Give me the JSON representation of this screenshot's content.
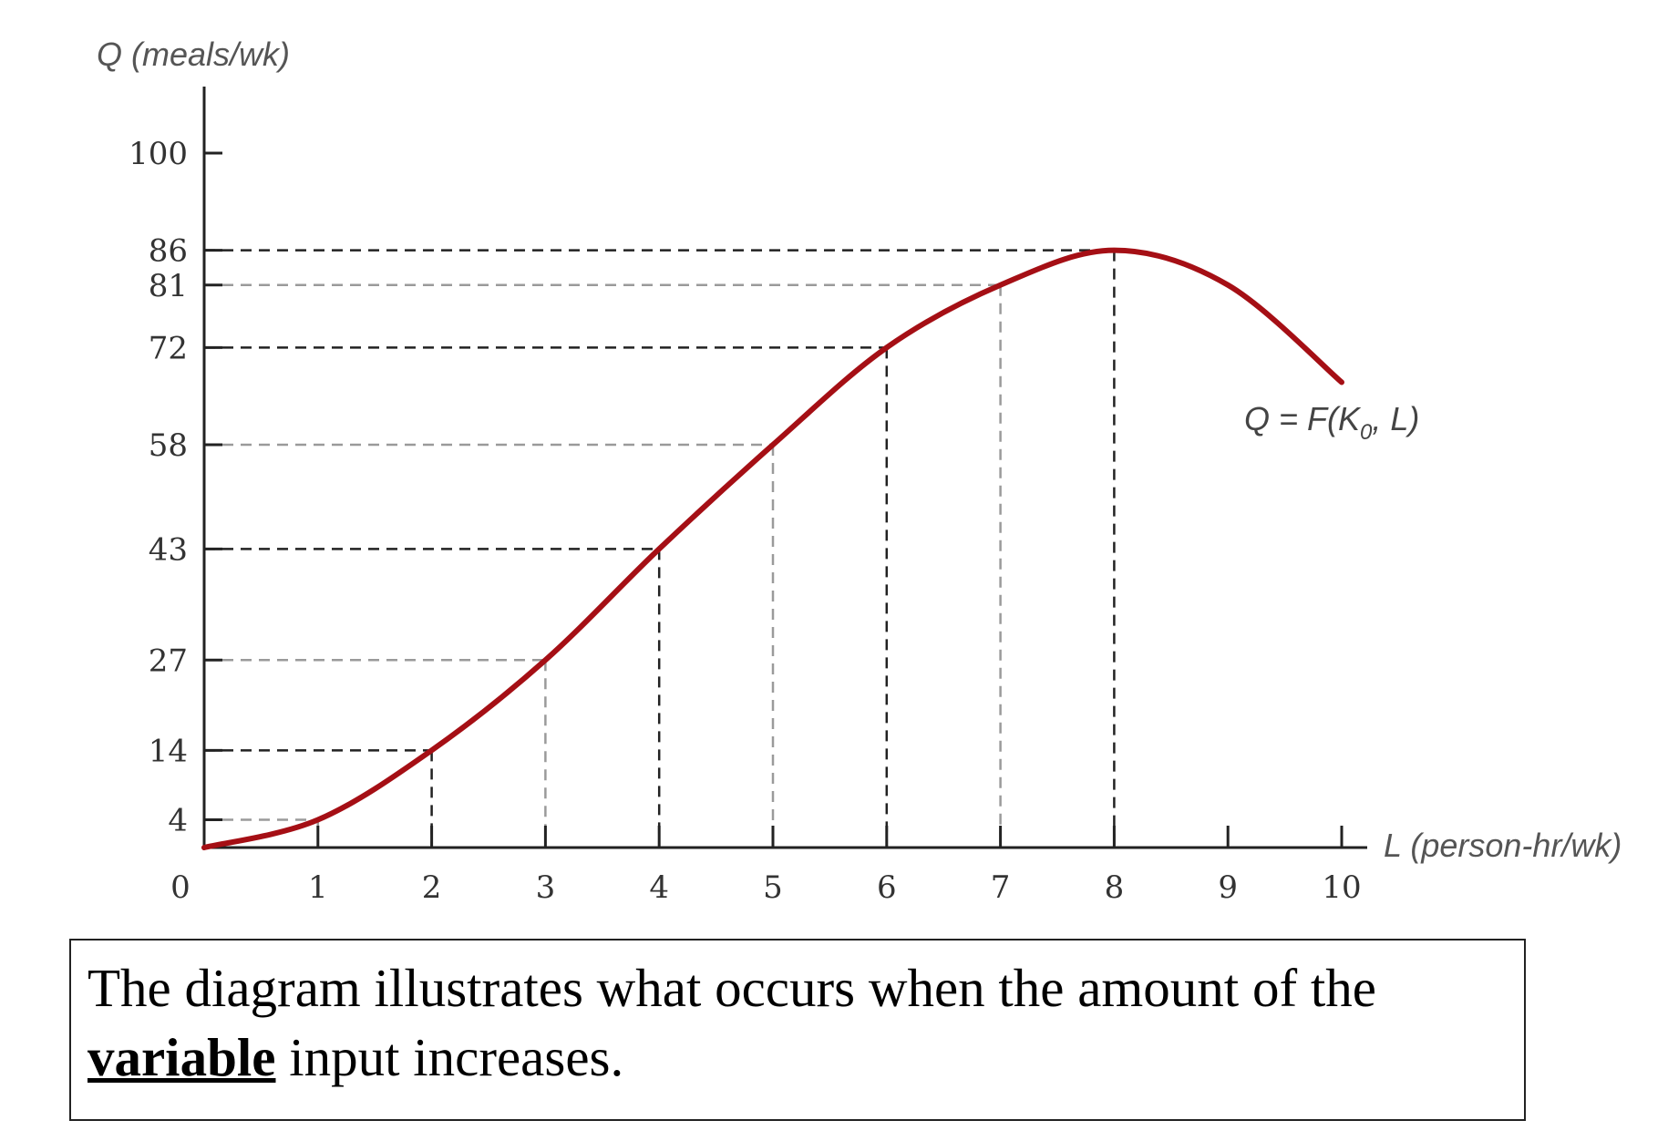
{
  "chart_data": {
    "type": "line",
    "ylabel": "Q (meals/wk)",
    "xlabel": "L (person-hr/wk)",
    "y_ticks": [
      "100",
      "86",
      "81",
      "72",
      "58",
      "43",
      "27",
      "14",
      "4"
    ],
    "y_tick_values": [
      100,
      86,
      81,
      72,
      58,
      43,
      27,
      14,
      4
    ],
    "x_ticks": [
      "0",
      "1",
      "2",
      "3",
      "4",
      "5",
      "6",
      "7",
      "8",
      "9",
      "10"
    ],
    "x_tick_values": [
      0,
      1,
      2,
      3,
      4,
      5,
      6,
      7,
      8,
      9,
      10
    ],
    "xlim": [
      0,
      10
    ],
    "ylim": [
      0,
      100
    ],
    "series": [
      {
        "name": "Q = F(K0, L)",
        "color": "#a50f15",
        "x": [
          0,
          1,
          2,
          3,
          4,
          5,
          6,
          7,
          8,
          9,
          10
        ],
        "y": [
          0,
          4,
          14,
          27,
          43,
          58,
          72,
          81,
          86,
          81,
          67
        ]
      }
    ],
    "annotation": {
      "text_main": "Q = F(K",
      "text_sub": "0",
      "text_tail": ", L)"
    },
    "grid": false,
    "reference_lines": "dashed"
  },
  "caption": {
    "part1": "The diagram illustrates what occurs when the amount of the ",
    "emphasis": "variable",
    "part2": " input increases."
  }
}
